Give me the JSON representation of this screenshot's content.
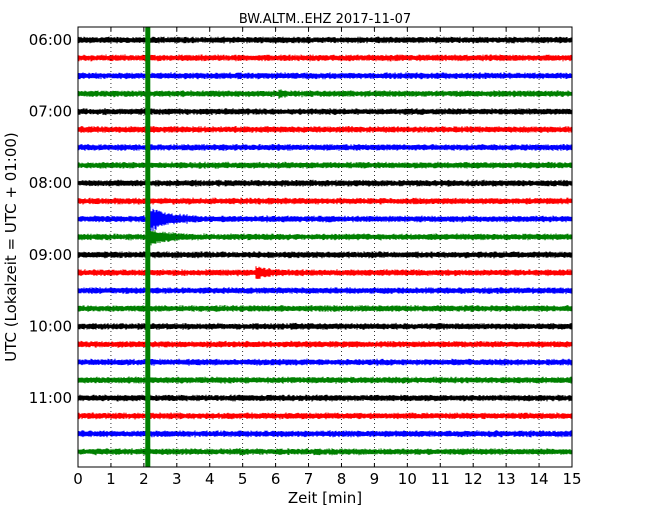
{
  "chart_data": {
    "type": "line",
    "title": "BW.ALTM..EHZ 2017-11-07",
    "xlabel": "Zeit  [min]",
    "ylabel": "UTC (Lokalzeit = UTC + 01:00)",
    "xlim": [
      0,
      15
    ],
    "x_ticks": [
      "0",
      "1",
      "2",
      "3",
      "4",
      "5",
      "6",
      "7",
      "8",
      "9",
      "10",
      "11",
      "12",
      "13",
      "14",
      "15"
    ],
    "y_ticks": [
      "06:00",
      "07:00",
      "08:00",
      "09:00",
      "10:00",
      "11:00"
    ],
    "grid": "vertical dotted",
    "colors": [
      "#000000",
      "#ff0000",
      "#0000ff",
      "#008000"
    ],
    "trace_interval_min": 15,
    "first_trace": "06:00",
    "trace_count": 24,
    "events": [
      {
        "trace": "06:45",
        "time_min": 6.1,
        "amplitude": 0.5,
        "duration_min": 0.4
      },
      {
        "trace": "08:30",
        "time_min": 2.1,
        "amplitude": 2.8,
        "duration_min": 1.5
      },
      {
        "trace": "08:45",
        "time_min": 2.1,
        "amplitude": 1.6,
        "duration_min": 1.3
      },
      {
        "trace": "09:15",
        "time_min": 5.4,
        "amplitude": 1.0,
        "duration_min": 1.0
      },
      {
        "trace": "11:45",
        "time_min": 4.9,
        "amplitude": 0.25,
        "duration_min": 0.4
      }
    ],
    "saturated_column_min": 2.12
  }
}
